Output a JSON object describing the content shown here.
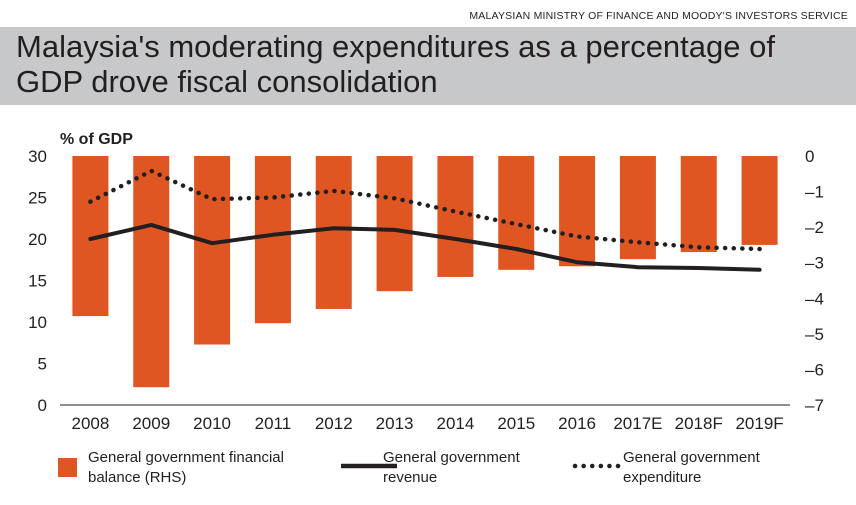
{
  "source": "MALAYSIAN MINISTRY OF FINANCE AND MOODY'S INVESTORS SERVICE",
  "title": "Malaysia's moderating expenditures as a percentage of GDP drove fiscal consolidation",
  "colors": {
    "title_band": "#c7c8ca",
    "bar": "#e05623",
    "line": "#231f20"
  },
  "chart_data": {
    "type": "bar+line",
    "ylabel": "% of GDP",
    "categories": [
      "2008",
      "2009",
      "2010",
      "2011",
      "2012",
      "2013",
      "2014",
      "2015",
      "2016",
      "2017E",
      "2018F",
      "2019F"
    ],
    "left_axis": {
      "ylim": [
        0,
        30
      ],
      "ticks": [
        0,
        5,
        10,
        15,
        20,
        25,
        30
      ]
    },
    "right_axis": {
      "ylim": [
        -7,
        0
      ],
      "ticks": [
        0,
        -1,
        -2,
        -3,
        -4,
        -5,
        -6,
        -7
      ]
    },
    "series": [
      {
        "name": "General government financial balance (RHS)",
        "type": "bar",
        "axis": "right",
        "values": [
          -4.5,
          -6.5,
          -5.3,
          -4.7,
          -4.3,
          -3.8,
          -3.4,
          -3.2,
          -3.1,
          -2.9,
          -2.7,
          -2.5
        ]
      },
      {
        "name": "General government revenue",
        "type": "line",
        "style": "solid",
        "axis": "left",
        "values": [
          20.0,
          21.7,
          19.5,
          20.5,
          21.3,
          21.1,
          20.0,
          18.8,
          17.2,
          16.6,
          16.5,
          16.3
        ]
      },
      {
        "name": "General government expenditure",
        "type": "line",
        "style": "dotted",
        "axis": "left",
        "values": [
          24.5,
          28.2,
          24.8,
          25.0,
          25.8,
          24.9,
          23.3,
          21.8,
          20.3,
          19.6,
          19.0,
          18.8
        ]
      }
    ],
    "grid": false,
    "legend_position": "bottom"
  },
  "legend": [
    {
      "line1": "General government financial",
      "line2": "balance (RHS)"
    },
    {
      "line1": "General government",
      "line2": "revenue"
    },
    {
      "line1": "General government",
      "line2": "expenditure"
    }
  ]
}
